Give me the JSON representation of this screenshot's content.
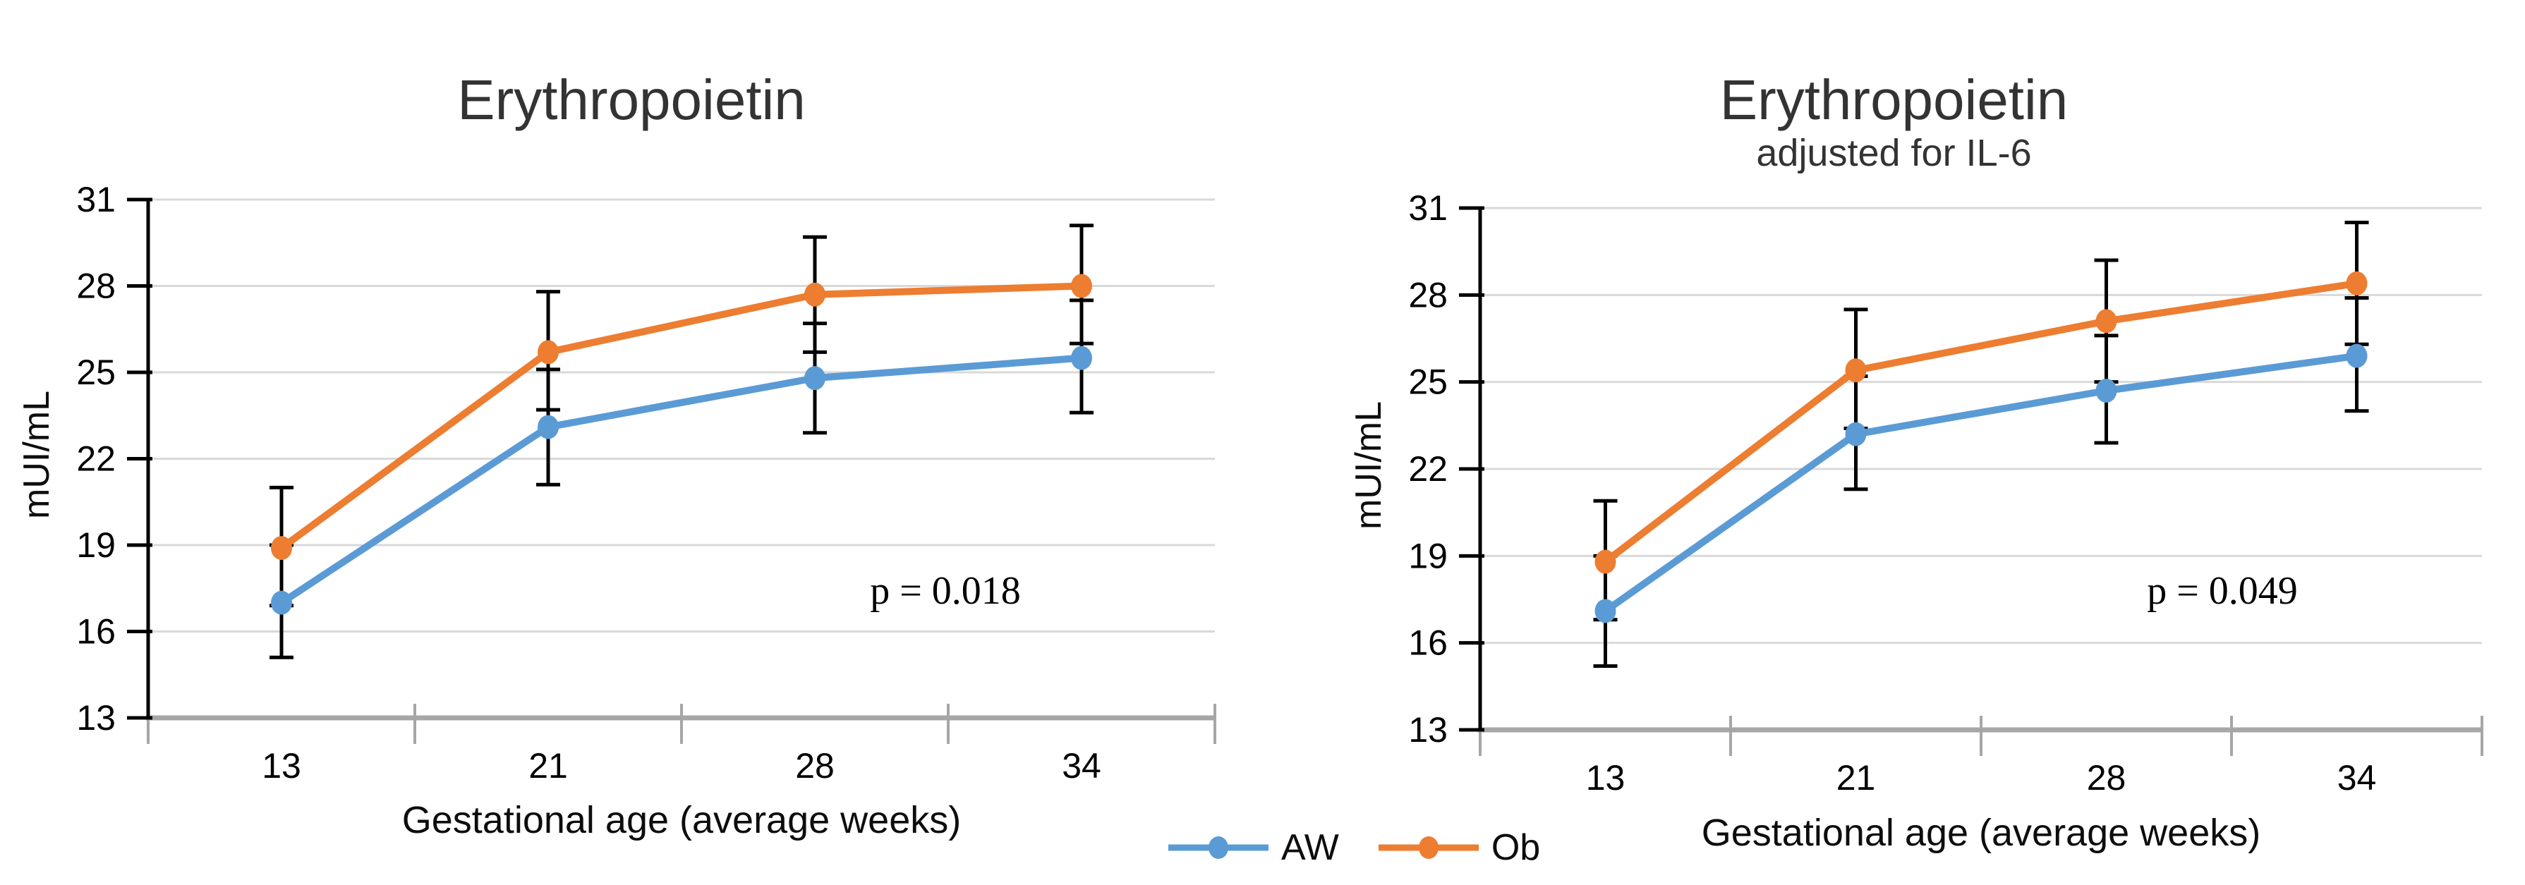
{
  "figure": {
    "background": "#FFFFFF"
  },
  "legend": {
    "items": [
      {
        "label": "AW",
        "color": "#5B9BD5"
      },
      {
        "label": "Ob",
        "color": "#ED7D31"
      }
    ]
  },
  "chart_data": [
    {
      "type": "line",
      "title": "Erythropoietin",
      "subtitle": "",
      "annotation": "p = 0.018",
      "xlabel": "Gestational age (average weeks)",
      "ylabel": "mUI/mL",
      "categories": [
        "13",
        "21",
        "28",
        "34"
      ],
      "ylim": [
        13,
        31
      ],
      "yticks": [
        13,
        16,
        19,
        22,
        25,
        28,
        31
      ],
      "grid": true,
      "error_bars": true,
      "legend_position": "bottom-center-shared",
      "series": [
        {
          "name": "AW",
          "color": "#5B9BD5",
          "values": [
            17.0,
            23.1,
            24.8,
            25.5
          ],
          "err_low": [
            15.1,
            21.1,
            22.9,
            23.6
          ],
          "err_high": [
            19.0,
            25.1,
            26.7,
            27.5
          ]
        },
        {
          "name": "Ob",
          "color": "#ED7D31",
          "values": [
            18.9,
            25.7,
            27.7,
            28.0
          ],
          "err_low": [
            16.9,
            23.7,
            25.7,
            26.0
          ],
          "err_high": [
            21.0,
            27.8,
            29.7,
            30.1
          ]
        }
      ]
    },
    {
      "type": "line",
      "title": "Erythropoietin",
      "subtitle": "adjusted for IL-6",
      "annotation": "p = 0.049",
      "xlabel": "Gestational age (average weeks)",
      "ylabel": "mUI/mL",
      "categories": [
        "13",
        "21",
        "28",
        "34"
      ],
      "ylim": [
        13,
        31
      ],
      "yticks": [
        13,
        16,
        19,
        22,
        25,
        28,
        31
      ],
      "grid": true,
      "error_bars": true,
      "legend_position": "bottom-center-shared",
      "series": [
        {
          "name": "AW",
          "color": "#5B9BD5",
          "values": [
            17.1,
            23.2,
            24.7,
            25.9
          ],
          "err_low": [
            15.2,
            21.3,
            22.9,
            24.0
          ],
          "err_high": [
            19.0,
            25.2,
            26.6,
            27.9
          ]
        },
        {
          "name": "Ob",
          "color": "#ED7D31",
          "values": [
            18.8,
            25.4,
            27.1,
            28.4
          ],
          "err_low": [
            16.8,
            23.4,
            25.0,
            26.3
          ],
          "err_high": [
            20.9,
            27.5,
            29.2,
            30.5
          ]
        }
      ]
    }
  ]
}
